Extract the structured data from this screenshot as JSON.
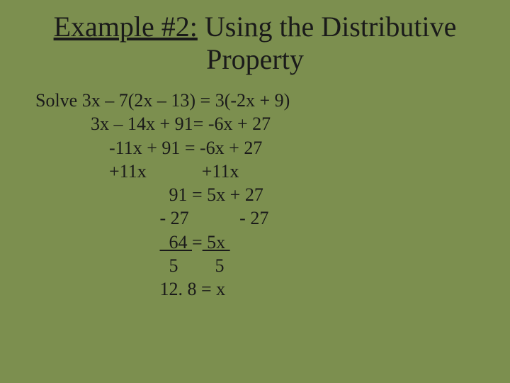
{
  "background_color": "#7c8f4f",
  "text_color": "#1a1a1a",
  "title_part1": "Example #2:",
  "title_part2": " Using the Distributive",
  "title_line2": "Property",
  "title_fontsize": 40,
  "body_fontsize": 26,
  "lines": {
    "l1": "Solve 3x – 7(2x – 13) = 3(-2x + 9)",
    "l2": "            3x – 14x + 91= -6x + 27",
    "l3": "                -11x + 91 = -6x + 27",
    "l4": "                +11x            +11x",
    "l5": "                             91 = 5x + 27",
    "l6": "                           - 27           - 27",
    "l7a": "                           ",
    "l7b": "  64 ",
    "l7c": "=",
    "l7d": " 5x ",
    "l8": "                             5        5",
    "l9": "                           12. 8 = x"
  }
}
